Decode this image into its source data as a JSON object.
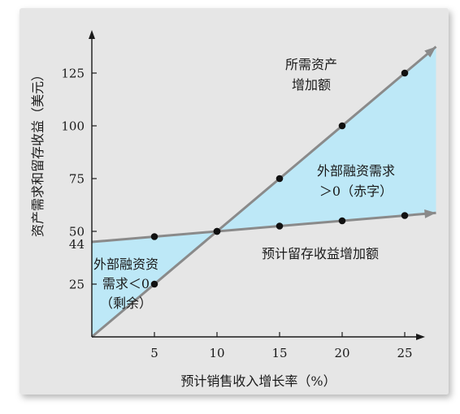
{
  "chart_data": {
    "type": "line",
    "xlabel": "预计销售收入增长率（%）",
    "ylabel": "资产需求和留存收益（美元）",
    "x_ticks": [
      5,
      10,
      15,
      20,
      25
    ],
    "y_ticks": [
      25,
      44,
      50,
      75,
      100,
      125
    ],
    "xlim": [
      0,
      27.5
    ],
    "ylim": [
      0,
      137
    ],
    "series": [
      {
        "name": "所需资产增加额",
        "x": [
          0,
          5,
          10,
          15,
          20,
          25,
          27.5
        ],
        "values": [
          0,
          25,
          50,
          75,
          100,
          125,
          137.5
        ],
        "color": "#8a8a8a",
        "points_marked": [
          5,
          10,
          15,
          20,
          25
        ]
      },
      {
        "name": "预计留存收益增加额",
        "x": [
          0,
          5,
          10,
          15,
          20,
          25,
          27.5
        ],
        "values": [
          45,
          47.5,
          50,
          52.5,
          55,
          57.5,
          58.75
        ],
        "color": "#8a8a8a",
        "points_marked": [
          5,
          10,
          15,
          20,
          25
        ]
      }
    ],
    "annotations": [
      {
        "lines": [
          "所需资产",
          "增加额"
        ]
      },
      {
        "lines": [
          "外部融资需求",
          "＞0（赤字）"
        ]
      },
      {
        "lines": [
          "预计留存收益增加额"
        ]
      },
      {
        "lines": [
          "外部融资资",
          "需求＜0",
          "（剩余）"
        ]
      }
    ],
    "colors": {
      "fill_region": "#bde8f7",
      "panel_bg": "#e6e6e6",
      "line": "#8a8a8a",
      "axis": "#1a1a1a",
      "point": "#111111"
    }
  }
}
